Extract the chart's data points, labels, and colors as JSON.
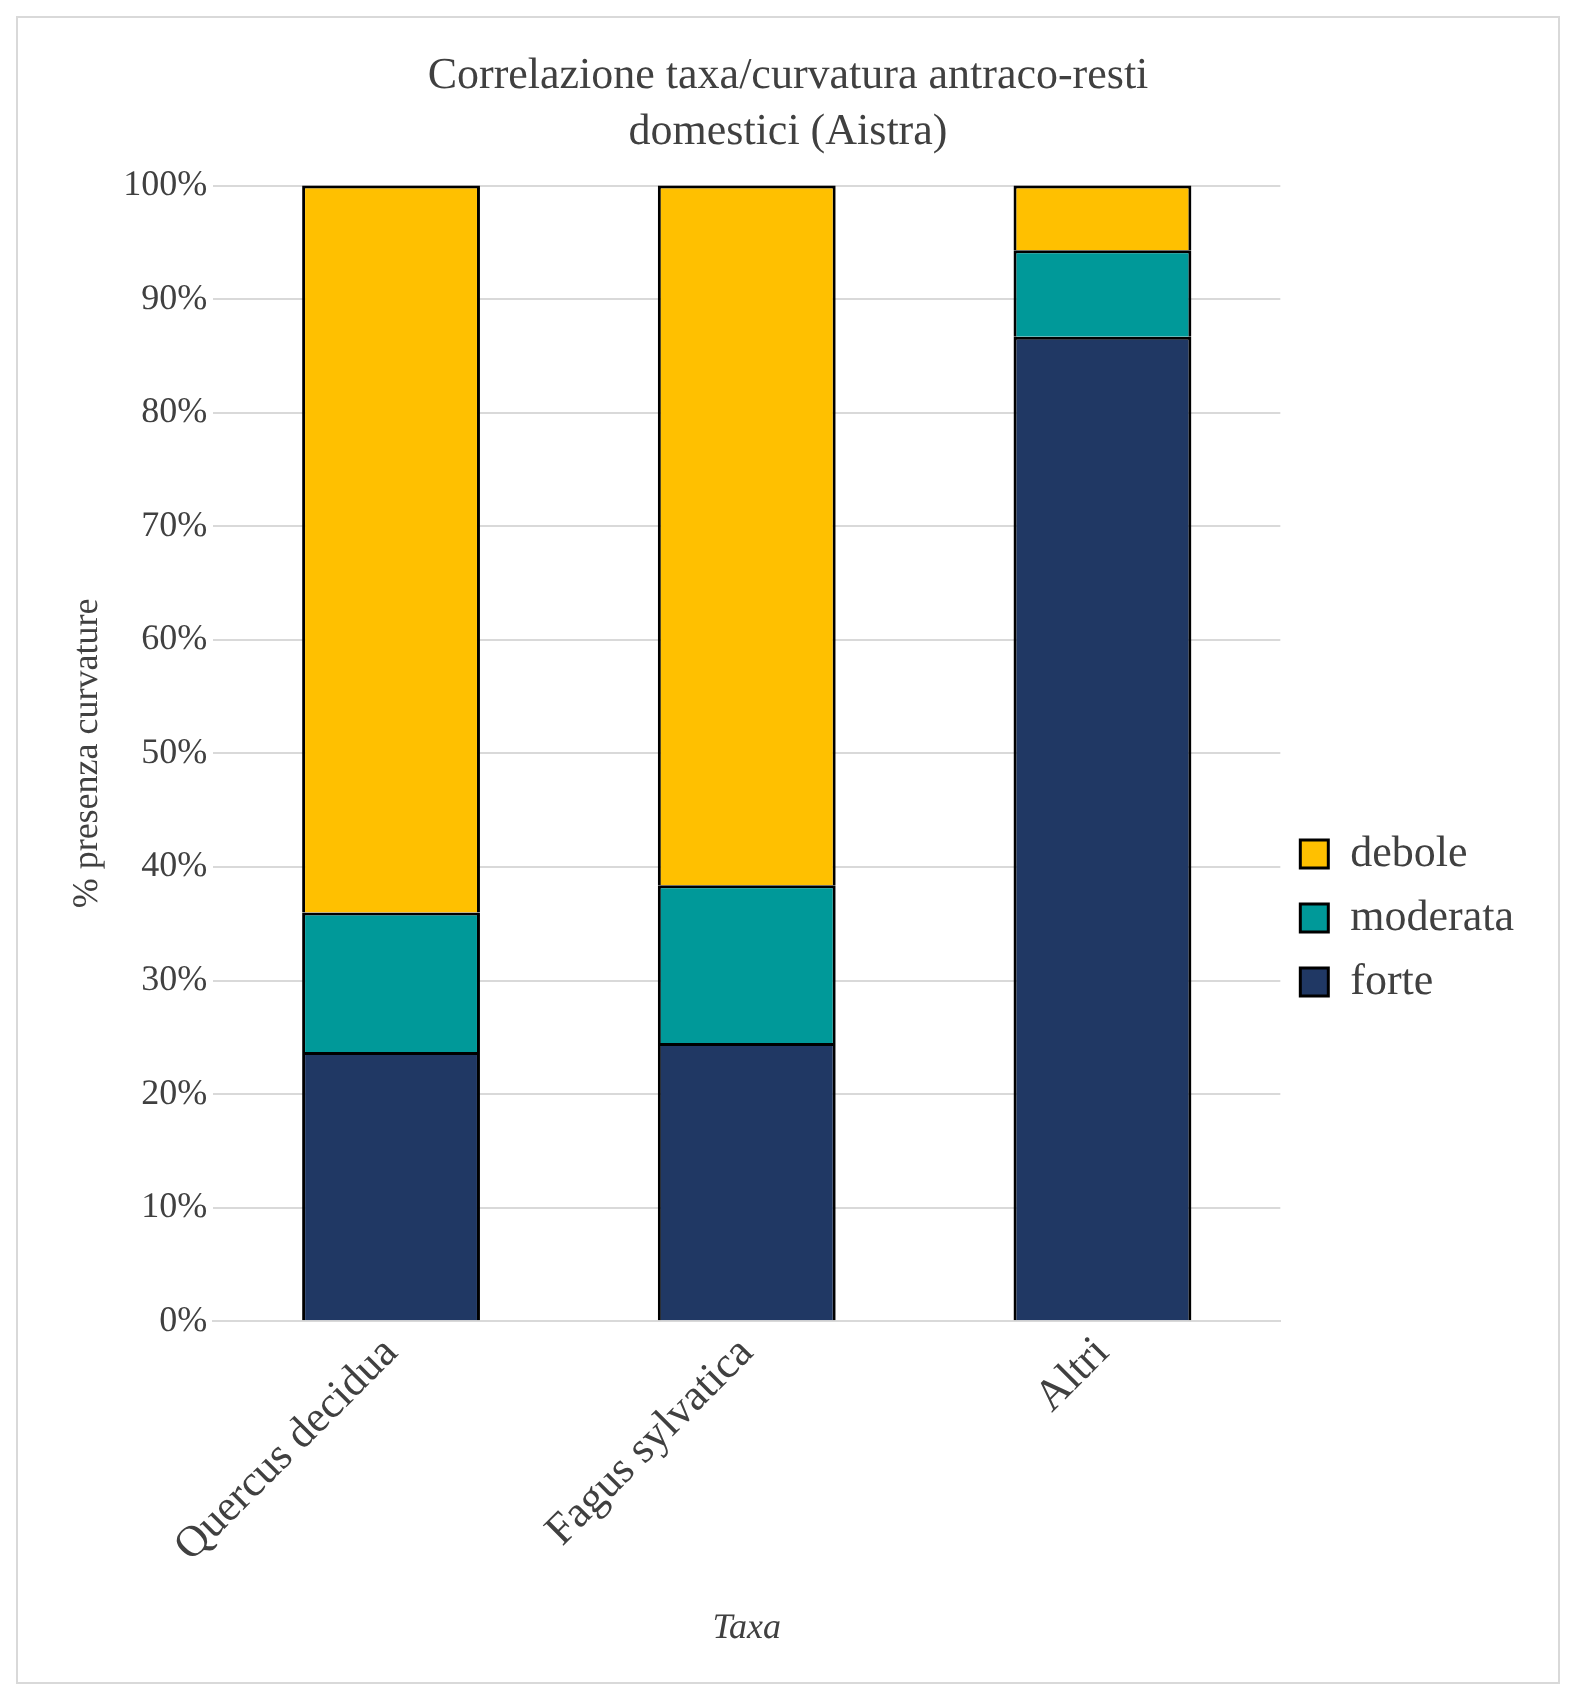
{
  "chart_data": {
    "type": "bar",
    "title": "Correlazione taxa/curvatura antraco-resti domestici (Aistra)",
    "xlabel": "Taxa",
    "ylabel": "% presenza curvature",
    "categories": [
      "Quercus decidua",
      "Fagus sylvatica",
      "Altri"
    ],
    "stacked": true,
    "series": [
      {
        "name": "forte",
        "color": "#203864",
        "values": [
          23.7,
          24.5,
          86.7
        ]
      },
      {
        "name": "moderata",
        "color": "#009999",
        "values": [
          12.3,
          13.9,
          7.6
        ]
      },
      {
        "name": "debole",
        "color": "#ffc000",
        "values": [
          64.0,
          61.6,
          5.7
        ]
      }
    ],
    "ylim": [
      0,
      100
    ],
    "yticks": [
      {
        "value": 0,
        "label": "0%"
      },
      {
        "value": 10,
        "label": "10%"
      },
      {
        "value": 20,
        "label": "20%"
      },
      {
        "value": 30,
        "label": "30%"
      },
      {
        "value": 40,
        "label": "40%"
      },
      {
        "value": 50,
        "label": "50%"
      },
      {
        "value": 60,
        "label": "60%"
      },
      {
        "value": 70,
        "label": "70%"
      },
      {
        "value": 80,
        "label": "80%"
      },
      {
        "value": 90,
        "label": "90%"
      },
      {
        "value": 100,
        "label": "100%"
      }
    ],
    "grid": "y",
    "legend": "right"
  }
}
